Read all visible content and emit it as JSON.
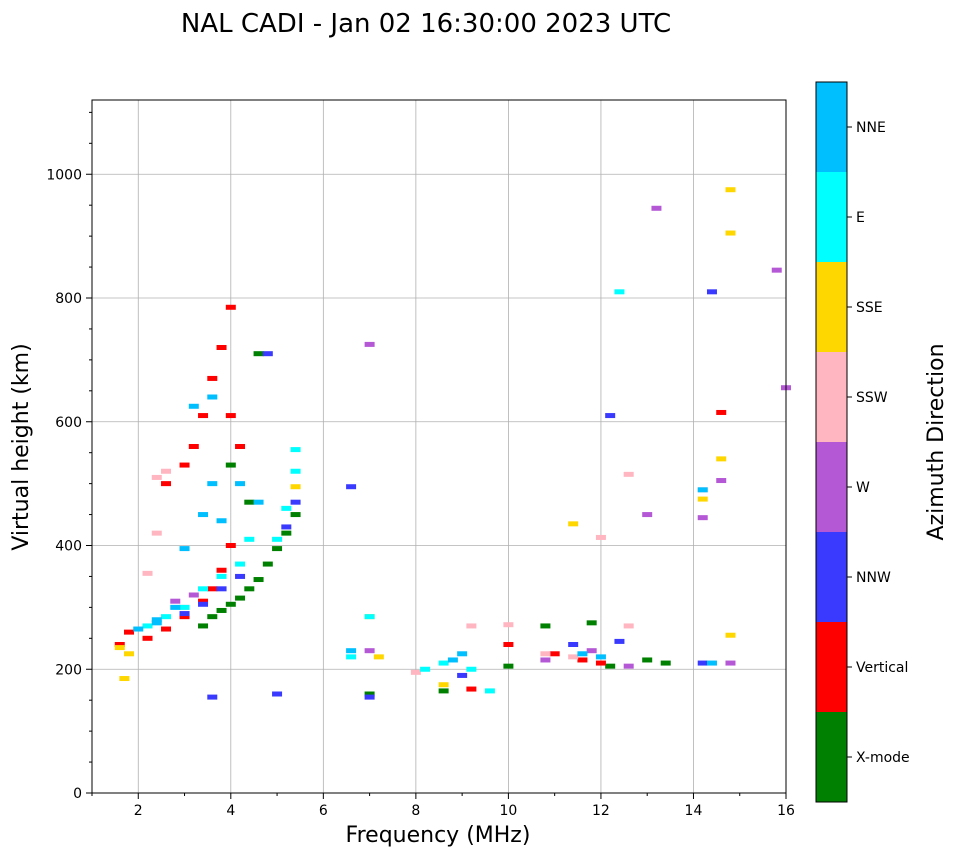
{
  "chart_data": {
    "type": "scatter",
    "title": "NAL CADI - Jan 02 16:30:00 2023 UTC",
    "xlabel": "Frequency (MHz)",
    "ylabel": "Virtual height (km)",
    "xlim": [
      1,
      16
    ],
    "ylim": [
      0,
      1120
    ],
    "xticks": [
      "2",
      "4",
      "6",
      "8",
      "10",
      "12",
      "14",
      "16"
    ],
    "yticks": [
      "0",
      "200",
      "400",
      "600",
      "800",
      "1000"
    ],
    "grid": true,
    "colorbar": {
      "label": "Azimuth Direction",
      "categories": [
        {
          "name": "X-mode",
          "color": "#008000"
        },
        {
          "name": "Vertical",
          "color": "#ff0000"
        },
        {
          "name": "NNW",
          "color": "#3a3aff"
        },
        {
          "name": "W",
          "color": "#b558d6"
        },
        {
          "name": "SSW",
          "color": "#ffb6c1"
        },
        {
          "name": "SSE",
          "color": "#ffd700"
        },
        {
          "name": "E",
          "color": "#00ffff"
        },
        {
          "name": "NNE",
          "color": "#00bfff"
        }
      ]
    },
    "echo_traces": [
      {
        "name": "X-mode",
        "points": [
          [
            3.4,
            270
          ],
          [
            3.6,
            285
          ],
          [
            3.8,
            295
          ],
          [
            4.0,
            305
          ],
          [
            4.2,
            315
          ],
          [
            4.4,
            330
          ],
          [
            4.6,
            345
          ],
          [
            4.8,
            370
          ],
          [
            5.0,
            395
          ],
          [
            5.2,
            420
          ],
          [
            5.4,
            450
          ],
          [
            7.0,
            160
          ],
          [
            8.6,
            165
          ],
          [
            10.0,
            205
          ],
          [
            10.8,
            270
          ],
          [
            11.8,
            275
          ],
          [
            12.2,
            205
          ],
          [
            13.0,
            215
          ],
          [
            13.4,
            210
          ],
          [
            4.6,
            710
          ],
          [
            4.4,
            470
          ],
          [
            4.0,
            530
          ]
        ]
      },
      {
        "name": "Vertical",
        "points": [
          [
            1.6,
            240
          ],
          [
            1.8,
            260
          ],
          [
            2.2,
            250
          ],
          [
            2.6,
            265
          ],
          [
            3.0,
            285
          ],
          [
            3.4,
            310
          ],
          [
            3.6,
            330
          ],
          [
            3.8,
            360
          ],
          [
            4.0,
            400
          ],
          [
            3.2,
            560
          ],
          [
            3.4,
            610
          ],
          [
            3.6,
            670
          ],
          [
            3.8,
            720
          ],
          [
            4.0,
            785
          ],
          [
            3.0,
            530
          ],
          [
            2.6,
            500
          ],
          [
            4.0,
            610
          ],
          [
            4.2,
            560
          ],
          [
            10.0,
            240
          ],
          [
            11.0,
            225
          ],
          [
            11.6,
            215
          ],
          [
            12.0,
            210
          ],
          [
            14.6,
            615
          ],
          [
            9.2,
            168
          ]
        ]
      },
      {
        "name": "NNW",
        "points": [
          [
            3.0,
            290
          ],
          [
            3.4,
            305
          ],
          [
            3.8,
            330
          ],
          [
            4.2,
            350
          ],
          [
            5.2,
            430
          ],
          [
            5.4,
            470
          ],
          [
            6.6,
            495
          ],
          [
            7.0,
            155
          ],
          [
            9.0,
            190
          ],
          [
            11.4,
            240
          ],
          [
            12.4,
            245
          ],
          [
            12.2,
            610
          ],
          [
            14.4,
            810
          ],
          [
            14.2,
            210
          ],
          [
            5.0,
            160
          ],
          [
            3.6,
            155
          ],
          [
            4.8,
            710
          ]
        ]
      },
      {
        "name": "W",
        "points": [
          [
            2.8,
            310
          ],
          [
            3.2,
            320
          ],
          [
            7.0,
            230
          ],
          [
            11.8,
            230
          ],
          [
            12.6,
            205
          ],
          [
            13.0,
            450
          ],
          [
            13.2,
            945
          ],
          [
            14.2,
            445
          ],
          [
            14.6,
            505
          ],
          [
            14.8,
            210
          ],
          [
            15.8,
            845
          ],
          [
            16.0,
            655
          ],
          [
            7.0,
            725
          ],
          [
            10.8,
            215
          ]
        ]
      },
      {
        "name": "SSW",
        "points": [
          [
            2.4,
            510
          ],
          [
            2.6,
            520
          ],
          [
            3.0,
            300
          ],
          [
            2.4,
            420
          ],
          [
            8.0,
            195
          ],
          [
            9.2,
            270
          ],
          [
            10.0,
            272
          ],
          [
            10.8,
            225
          ],
          [
            11.4,
            220
          ],
          [
            12.6,
            270
          ],
          [
            12.6,
            515
          ],
          [
            12.0,
            413
          ],
          [
            14.2,
            490
          ],
          [
            2.2,
            355
          ]
        ]
      },
      {
        "name": "SSE",
        "points": [
          [
            1.6,
            235
          ],
          [
            1.8,
            225
          ],
          [
            7.0,
            285
          ],
          [
            7.2,
            220
          ],
          [
            8.6,
            175
          ],
          [
            11.4,
            435
          ],
          [
            14.2,
            475
          ],
          [
            14.6,
            540
          ],
          [
            14.8,
            255
          ],
          [
            14.8,
            905
          ],
          [
            14.8,
            975
          ],
          [
            5.4,
            495
          ],
          [
            1.7,
            185
          ]
        ]
      },
      {
        "name": "E",
        "points": [
          [
            2.2,
            270
          ],
          [
            2.6,
            285
          ],
          [
            3.0,
            300
          ],
          [
            3.4,
            330
          ],
          [
            3.8,
            350
          ],
          [
            4.2,
            370
          ],
          [
            5.0,
            410
          ],
          [
            5.2,
            460
          ],
          [
            5.4,
            520
          ],
          [
            6.6,
            220
          ],
          [
            7.0,
            285
          ],
          [
            8.2,
            200
          ],
          [
            8.6,
            210
          ],
          [
            9.2,
            200
          ],
          [
            9.6,
            165
          ],
          [
            12.4,
            810
          ],
          [
            5.4,
            555
          ],
          [
            4.4,
            410
          ]
        ]
      },
      {
        "name": "NNE",
        "points": [
          [
            2.0,
            265
          ],
          [
            2.4,
            280
          ],
          [
            2.8,
            300
          ],
          [
            3.0,
            395
          ],
          [
            3.4,
            450
          ],
          [
            3.6,
            500
          ],
          [
            3.8,
            440
          ],
          [
            4.2,
            500
          ],
          [
            3.2,
            625
          ],
          [
            3.6,
            640
          ],
          [
            6.6,
            230
          ],
          [
            8.8,
            215
          ],
          [
            9.0,
            225
          ],
          [
            11.6,
            225
          ],
          [
            12.0,
            220
          ],
          [
            14.4,
            210
          ],
          [
            14.2,
            490
          ],
          [
            4.6,
            470
          ],
          [
            2.4,
            275
          ]
        ]
      }
    ]
  }
}
